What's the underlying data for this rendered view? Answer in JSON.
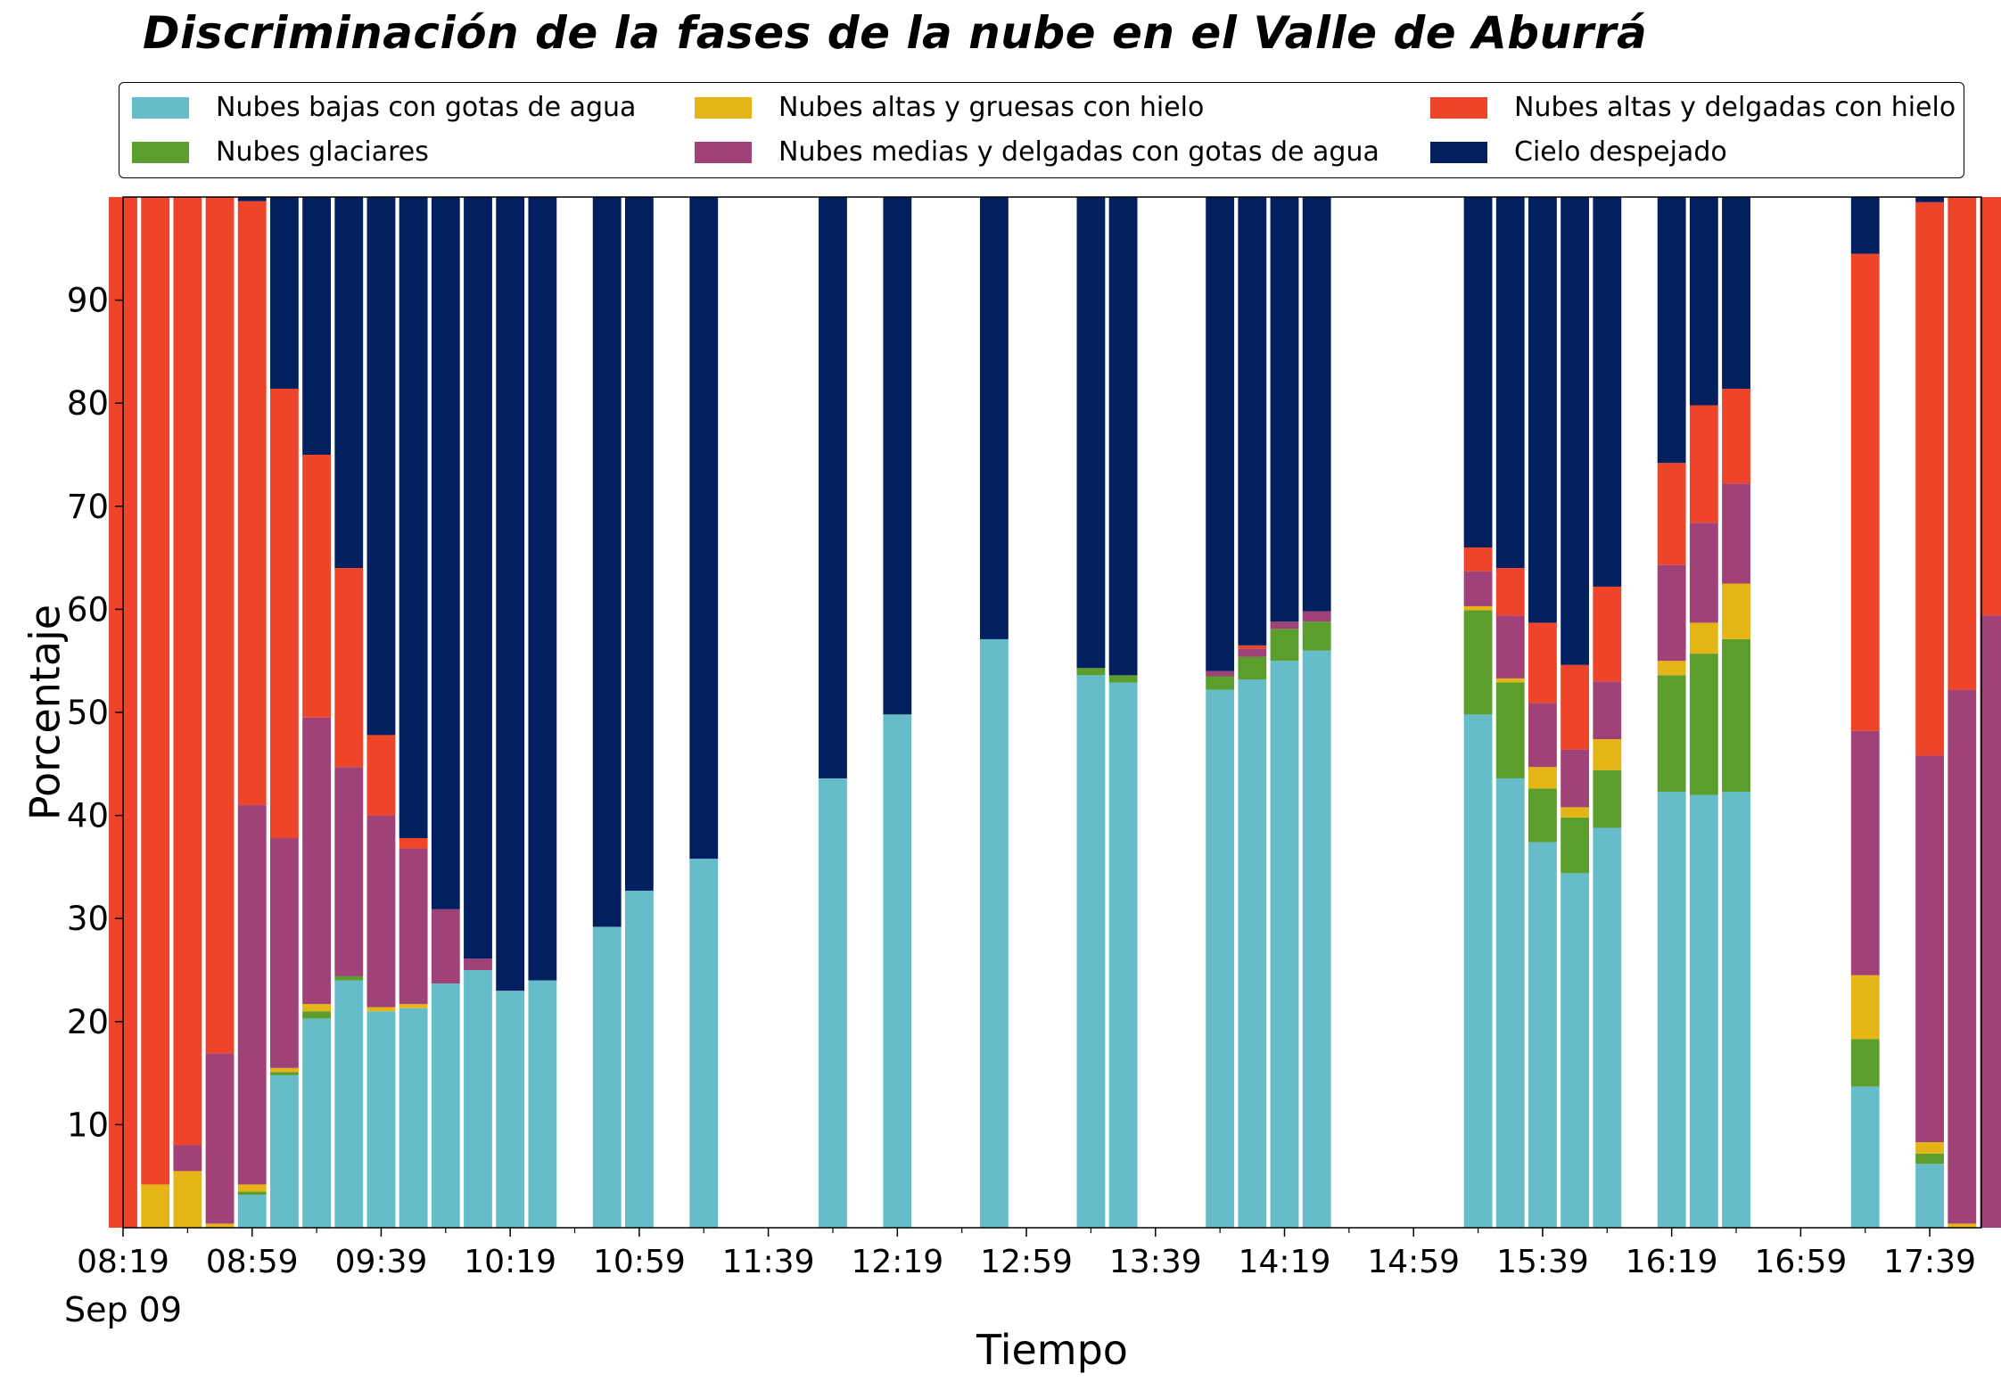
{
  "chart_data": {
    "type": "bar",
    "stacked": true,
    "title": "Discriminación de la fases de la nube en el Valle de Aburrá",
    "xlabel": "Tiempo",
    "ylabel": "Porcentaje",
    "ylim": [
      0,
      100
    ],
    "yticks": [
      10,
      20,
      30,
      40,
      50,
      60,
      70,
      80,
      90
    ],
    "xticks": [
      "08:19",
      "08:59",
      "09:39",
      "10:19",
      "10:59",
      "11:39",
      "12:19",
      "12:59",
      "13:39",
      "14:19",
      "14:59",
      "15:39",
      "16:19",
      "16:59",
      "17:39"
    ],
    "xtick_sublabel": "Sep 09",
    "x_start": "08:19",
    "x_end": "17:55",
    "bar_interval_minutes": 10,
    "grid": false,
    "legend_position": "top",
    "legend": [
      {
        "name": "Nubes bajas con gotas de agua",
        "color": "#66bdc9"
      },
      {
        "name": "Nubes altas y gruesas con hielo",
        "color": "#e5b517"
      },
      {
        "name": "Nubes altas y delgadas con hielo",
        "color": "#ee4429"
      },
      {
        "name": "Nubes glaciares",
        "color": "#5b9e2b"
      },
      {
        "name": "Nubes medias y delgadas con gotas de agua",
        "color": "#a04178"
      },
      {
        "name": "Cielo despejado",
        "color": "#02205f"
      }
    ],
    "series_order": [
      "bajas",
      "glaciares",
      "gruesas",
      "medias",
      "delgadas",
      "despejado"
    ],
    "bars": [
      {
        "time": "08:19",
        "bajas": 0,
        "glaciares": 0,
        "gruesas": 0,
        "medias": 0,
        "delgadas": 100,
        "despejado": 0
      },
      {
        "time": "08:29",
        "bajas": 0,
        "glaciares": 0,
        "gruesas": 4.2,
        "medias": 0,
        "delgadas": 95.8,
        "despejado": 0
      },
      {
        "time": "08:39",
        "bajas": 0,
        "glaciares": 0,
        "gruesas": 5.5,
        "medias": 2.5,
        "delgadas": 92.0,
        "despejado": 0
      },
      {
        "time": "08:49",
        "bajas": 0,
        "glaciares": 0,
        "gruesas": 0.4,
        "medias": 16.5,
        "delgadas": 83.1,
        "despejado": 0
      },
      {
        "time": "08:59",
        "bajas": 3.2,
        "glaciares": 0.3,
        "gruesas": 0.7,
        "medias": 36.8,
        "delgadas": 58.6,
        "despejado": 0.4
      },
      {
        "time": "09:09",
        "bajas": 14.8,
        "glaciares": 0.3,
        "gruesas": 0.4,
        "medias": 22.3,
        "delgadas": 43.6,
        "despejado": 18.6
      },
      {
        "time": "09:19",
        "bajas": 20.3,
        "glaciares": 0.7,
        "gruesas": 0.7,
        "medias": 27.8,
        "delgadas": 25.5,
        "despejado": 25.0
      },
      {
        "time": "09:29",
        "bajas": 24.0,
        "glaciares": 0.4,
        "gruesas": 0,
        "medias": 20.3,
        "delgadas": 19.3,
        "despejado": 36.0
      },
      {
        "time": "09:39",
        "bajas": 21.0,
        "glaciares": 0,
        "gruesas": 0.4,
        "medias": 18.6,
        "delgadas": 7.8,
        "despejado": 52.2
      },
      {
        "time": "09:49",
        "bajas": 21.3,
        "glaciares": 0,
        "gruesas": 0.4,
        "medias": 15.1,
        "delgadas": 1.0,
        "despejado": 62.2
      },
      {
        "time": "09:59",
        "bajas": 23.7,
        "glaciares": 0,
        "gruesas": 0,
        "medias": 7.2,
        "delgadas": 0,
        "despejado": 69.1
      },
      {
        "time": "10:09",
        "bajas": 25.0,
        "glaciares": 0,
        "gruesas": 0,
        "medias": 1.1,
        "delgadas": 0,
        "despejado": 73.9
      },
      {
        "time": "10:19",
        "bajas": 23.0,
        "glaciares": 0,
        "gruesas": 0,
        "medias": 0,
        "delgadas": 0,
        "despejado": 77.0
      },
      {
        "time": "10:29",
        "bajas": 24.0,
        "glaciares": 0,
        "gruesas": 0,
        "medias": 0,
        "delgadas": 0,
        "despejado": 76.0
      },
      {
        "time": "10:49",
        "bajas": 29.2,
        "glaciares": 0,
        "gruesas": 0,
        "medias": 0,
        "delgadas": 0,
        "despejado": 70.8
      },
      {
        "time": "10:59",
        "bajas": 32.7,
        "glaciares": 0,
        "gruesas": 0,
        "medias": 0,
        "delgadas": 0,
        "despejado": 67.3
      },
      {
        "time": "11:19",
        "bajas": 35.8,
        "glaciares": 0,
        "gruesas": 0,
        "medias": 0,
        "delgadas": 0,
        "despejado": 64.2
      },
      {
        "time": "11:59",
        "bajas": 43.6,
        "glaciares": 0,
        "gruesas": 0,
        "medias": 0,
        "delgadas": 0,
        "despejado": 56.4
      },
      {
        "time": "12:19",
        "bajas": 49.8,
        "glaciares": 0,
        "gruesas": 0,
        "medias": 0,
        "delgadas": 0,
        "despejado": 50.2
      },
      {
        "time": "12:49",
        "bajas": 57.1,
        "glaciares": 0,
        "gruesas": 0,
        "medias": 0,
        "delgadas": 0,
        "despejado": 42.9
      },
      {
        "time": "13:19",
        "bajas": 53.6,
        "glaciares": 0.7,
        "gruesas": 0,
        "medias": 0,
        "delgadas": 0,
        "despejado": 45.7
      },
      {
        "time": "13:29",
        "bajas": 52.9,
        "glaciares": 0.7,
        "gruesas": 0,
        "medias": 0,
        "delgadas": 0,
        "despejado": 46.4
      },
      {
        "time": "13:59",
        "bajas": 52.2,
        "glaciares": 1.3,
        "gruesas": 0,
        "medias": 0.5,
        "delgadas": 0,
        "despejado": 46.0
      },
      {
        "time": "14:09",
        "bajas": 53.2,
        "glaciares": 2.2,
        "gruesas": 0,
        "medias": 0.8,
        "delgadas": 0.3,
        "despejado": 43.5
      },
      {
        "time": "14:19",
        "bajas": 55.0,
        "glaciares": 3.1,
        "gruesas": 0,
        "medias": 0.7,
        "delgadas": 0,
        "despejado": 41.2
      },
      {
        "time": "14:29",
        "bajas": 56.0,
        "glaciares": 2.8,
        "gruesas": 0,
        "medias": 1.0,
        "delgadas": 0,
        "despejado": 40.2
      },
      {
        "time": "15:19",
        "bajas": 49.8,
        "glaciares": 10.1,
        "gruesas": 0.4,
        "medias": 3.4,
        "delgadas": 2.3,
        "despejado": 34.0
      },
      {
        "time": "15:29",
        "bajas": 43.6,
        "glaciares": 9.3,
        "gruesas": 0.4,
        "medias": 6.1,
        "delgadas": 4.6,
        "despejado": 36.0
      },
      {
        "time": "15:39",
        "bajas": 37.4,
        "glaciares": 5.2,
        "gruesas": 2.1,
        "medias": 6.2,
        "delgadas": 7.8,
        "despejado": 41.3
      },
      {
        "time": "15:49",
        "bajas": 34.4,
        "glaciares": 5.4,
        "gruesas": 1.0,
        "medias": 5.6,
        "delgadas": 8.2,
        "despejado": 45.4
      },
      {
        "time": "15:59",
        "bajas": 38.8,
        "glaciares": 5.6,
        "gruesas": 3.0,
        "medias": 5.6,
        "delgadas": 9.2,
        "despejado": 37.8
      },
      {
        "time": "16:19",
        "bajas": 42.3,
        "glaciares": 11.3,
        "gruesas": 1.4,
        "medias": 9.3,
        "delgadas": 9.9,
        "despejado": 25.8
      },
      {
        "time": "16:29",
        "bajas": 42.0,
        "glaciares": 13.7,
        "gruesas": 3.0,
        "medias": 9.7,
        "delgadas": 11.4,
        "despejado": 20.2
      },
      {
        "time": "16:39",
        "bajas": 42.3,
        "glaciares": 14.8,
        "gruesas": 5.4,
        "medias": 9.7,
        "delgadas": 9.2,
        "despejado": 18.6
      },
      {
        "time": "17:19",
        "bajas": 13.7,
        "glaciares": 4.6,
        "gruesas": 6.2,
        "medias": 23.7,
        "delgadas": 46.3,
        "despejado": 5.5
      },
      {
        "time": "17:39",
        "bajas": 6.2,
        "glaciares": 1.0,
        "gruesas": 1.1,
        "medias": 37.5,
        "delgadas": 53.7,
        "despejado": 0.5
      },
      {
        "time": "17:49",
        "bajas": 0,
        "glaciares": 0,
        "gruesas": 0.4,
        "medias": 51.8,
        "delgadas": 47.8,
        "despejado": 0
      },
      {
        "time": "17:59",
        "bajas": 0,
        "glaciares": 0,
        "gruesas": 0,
        "medias": 59.4,
        "delgadas": 40.6,
        "despejado": 0
      }
    ]
  }
}
